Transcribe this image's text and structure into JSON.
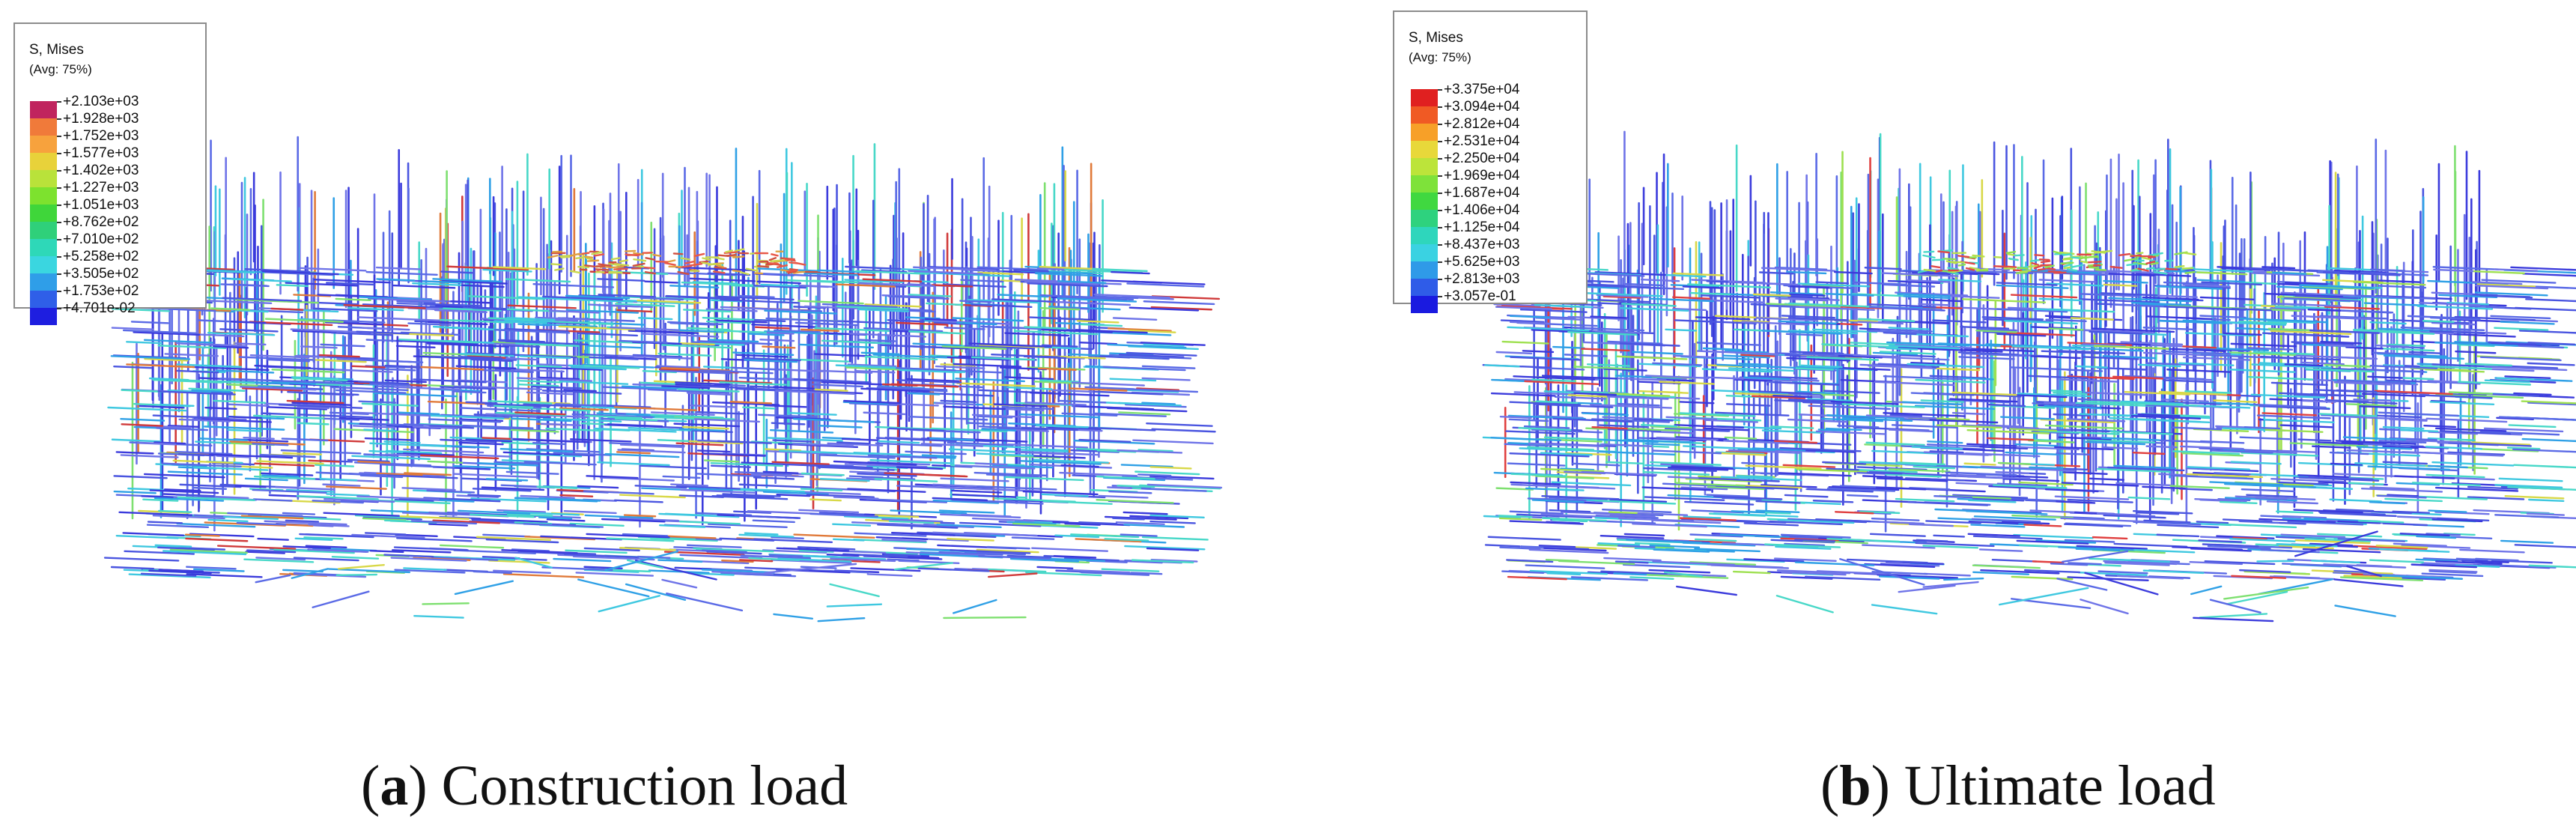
{
  "panels": [
    {
      "id": "a",
      "legend": {
        "title": "S, Mises",
        "subtitle": "(Avg: 75%)",
        "labels": [
          "+2.103e+03",
          "+1.928e+03",
          "+1.752e+03",
          "+1.577e+03",
          "+1.402e+03",
          "+1.227e+03",
          "+1.051e+03",
          "+8.762e+02",
          "+7.010e+02",
          "+5.258e+02",
          "+3.505e+02",
          "+1.753e+02",
          "+4.701e-02"
        ],
        "colors": [
          "#c0245e",
          "#f07a3a",
          "#f7a23d",
          "#e8d23a",
          "#b9e23a",
          "#7de22e",
          "#3fd63a",
          "#2fd07a",
          "#2ed8b8",
          "#3ad6e0",
          "#2f9ee8",
          "#2f5fe8",
          "#1e1ee0"
        ]
      },
      "caption": {
        "letter": "a",
        "text": "Construction load"
      },
      "mesh_palette": [
        "#3b3bdc",
        "#4a55e0",
        "#5a6ae6",
        "#6f74e8",
        "#2fa0e6",
        "#3fc8e0",
        "#48d8c8",
        "#7ee070",
        "#d8d848",
        "#e07a3a",
        "#d03a3a"
      ],
      "hot_palette": [
        "#d05040",
        "#e0a040",
        "#c8d850",
        "#e85848"
      ]
    },
    {
      "id": "b",
      "legend": {
        "title": "S, Mises",
        "subtitle": "(Avg: 75%)",
        "labels": [
          "+3.375e+04",
          "+3.094e+04",
          "+2.812e+04",
          "+2.531e+04",
          "+2.250e+04",
          "+1.969e+04",
          "+1.687e+04",
          "+1.406e+04",
          "+1.125e+04",
          "+8.437e+03",
          "+5.625e+03",
          "+2.813e+03",
          "+3.057e-01"
        ],
        "colors": [
          "#e02020",
          "#f05a24",
          "#f7a028",
          "#e8d83a",
          "#bce43a",
          "#7ee23a",
          "#40d840",
          "#2ed27e",
          "#2ed6bc",
          "#3ad2e2",
          "#2f9ae8",
          "#2f5ce8",
          "#1a1ae0"
        ]
      },
      "caption": {
        "letter": "b",
        "text": "Ultimate load"
      },
      "mesh_palette": [
        "#3b3bdc",
        "#4a55e0",
        "#5a6ae6",
        "#6f74e8",
        "#2fa0e6",
        "#3fc8e0",
        "#48d8c8",
        "#7ee070",
        "#9ee050",
        "#d8d848",
        "#e04040"
      ],
      "hot_palette": [
        "#8ee050",
        "#b8e04a",
        "#e04848",
        "#48d8c8"
      ]
    }
  ]
}
